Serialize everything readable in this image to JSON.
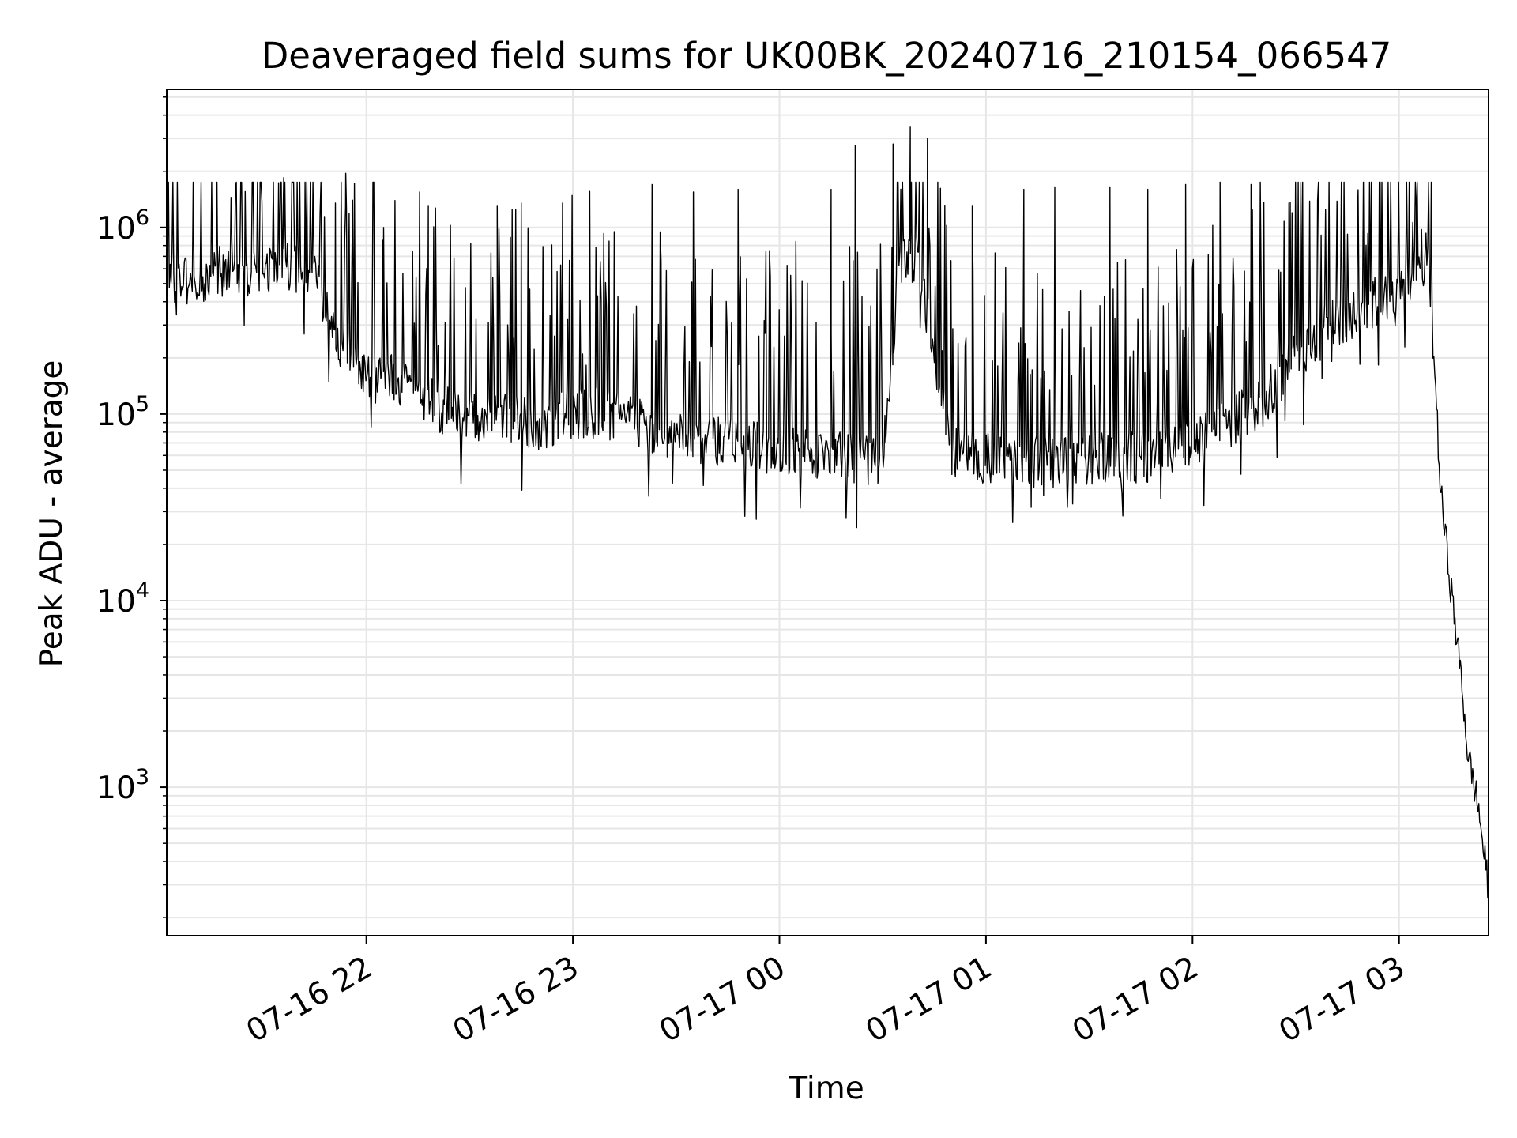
{
  "chart_data": {
    "type": "line",
    "title": "Deaveraged field sums for UK00BK_20240716_210154_066547",
    "xlabel": "Time",
    "ylabel": "Peak ADU - average",
    "yscale": "log",
    "grid": true,
    "line_color": "#000000",
    "xlim": [
      "2024-07-16 21:02",
      "2024-07-17 03:26"
    ],
    "ylim": [
      160,
      5500000
    ],
    "x_ticks": [
      {
        "t": "2024-07-16 22:00",
        "label": "07-16 22"
      },
      {
        "t": "2024-07-16 23:00",
        "label": "07-16 23"
      },
      {
        "t": "2024-07-17 00:00",
        "label": "07-17 00"
      },
      {
        "t": "2024-07-17 01:00",
        "label": "07-17 01"
      },
      {
        "t": "2024-07-17 02:00",
        "label": "07-17 02"
      },
      {
        "t": "2024-07-17 03:00",
        "label": "07-17 03"
      }
    ],
    "y_ticks": [
      {
        "v": 1000,
        "base": "10",
        "exp": "3"
      },
      {
        "v": 10000,
        "base": "10",
        "exp": "4"
      },
      {
        "v": 100000,
        "base": "10",
        "exp": "5"
      },
      {
        "v": 1000000,
        "base": "10",
        "exp": "6"
      }
    ],
    "series": [
      {
        "x": [
          "2024-07-16 21:02",
          "2024-07-16 21:10",
          "2024-07-16 21:20",
          "2024-07-16 21:30",
          "2024-07-16 21:38",
          "2024-07-16 21:45",
          "2024-07-16 21:52",
          "2024-07-16 22:00",
          "2024-07-16 22:10",
          "2024-07-16 22:20",
          "2024-07-16 22:30",
          "2024-07-16 22:40",
          "2024-07-16 22:50",
          "2024-07-16 23:00",
          "2024-07-16 23:10",
          "2024-07-16 23:20",
          "2024-07-16 23:30",
          "2024-07-16 23:40",
          "2024-07-16 23:50",
          "2024-07-17 00:00",
          "2024-07-17 00:10",
          "2024-07-17 00:20",
          "2024-07-17 00:30",
          "2024-07-17 00:35",
          "2024-07-17 00:40",
          "2024-07-17 00:50",
          "2024-07-17 01:00",
          "2024-07-17 01:10",
          "2024-07-17 01:20",
          "2024-07-17 01:30",
          "2024-07-17 01:40",
          "2024-07-17 01:50",
          "2024-07-17 02:00",
          "2024-07-17 02:10",
          "2024-07-17 02:20",
          "2024-07-17 02:30",
          "2024-07-17 02:40",
          "2024-07-17 02:50",
          "2024-07-17 03:00",
          "2024-07-17 03:05",
          "2024-07-17 03:08",
          "2024-07-17 03:10",
          "2024-07-17 03:12",
          "2024-07-17 03:15",
          "2024-07-17 03:18",
          "2024-07-17 03:20",
          "2024-07-17 03:23",
          "2024-07-17 03:26"
        ],
        "y": [
          550000,
          520000,
          600000,
          560000,
          620000,
          520000,
          250000,
          160000,
          150000,
          110000,
          100000,
          95000,
          88000,
          100000,
          100000,
          90000,
          75000,
          70000,
          68000,
          65000,
          60000,
          58000,
          55000,
          700000,
          700000,
          62000,
          58000,
          56000,
          55000,
          57000,
          58000,
          60000,
          70000,
          90000,
          115000,
          200000,
          300000,
          380000,
          450000,
          600000,
          680000,
          250000,
          40000,
          12000,
          4000,
          1500,
          800,
          280
        ]
      }
    ],
    "spikes": [
      {
        "t": "2024-07-16 21:36",
        "v": 1850000
      },
      {
        "t": "2024-07-16 21:54",
        "v": 1950000
      },
      {
        "t": "2024-07-16 21:51",
        "v": 1350000
      },
      {
        "t": "2024-07-16 22:05",
        "v": 1000000
      },
      {
        "t": "2024-07-16 22:18",
        "v": 1300000
      },
      {
        "t": "2024-07-16 22:38",
        "v": 1300000
      },
      {
        "t": "2024-07-16 22:45",
        "v": 1350000
      },
      {
        "t": "2024-07-16 22:57",
        "v": 1350000
      },
      {
        "t": "2024-07-16 23:12",
        "v": 950000
      },
      {
        "t": "2024-07-16 23:23",
        "v": 1700000
      },
      {
        "t": "2024-07-16 23:35",
        "v": 1550000
      },
      {
        "t": "2024-07-16 23:48",
        "v": 1600000
      },
      {
        "t": "2024-07-17 00:15",
        "v": 1600000
      },
      {
        "t": "2024-07-17 00:22",
        "v": 2750000
      },
      {
        "t": "2024-07-17 00:33",
        "v": 2800000
      },
      {
        "t": "2024-07-17 00:38",
        "v": 3450000
      },
      {
        "t": "2024-07-17 00:43",
        "v": 3000000
      },
      {
        "t": "2024-07-17 00:56",
        "v": 1300000
      },
      {
        "t": "2024-07-17 01:11",
        "v": 1600000
      },
      {
        "t": "2024-07-17 01:20",
        "v": 1650000
      },
      {
        "t": "2024-07-17 01:36",
        "v": 1650000
      },
      {
        "t": "2024-07-17 01:47",
        "v": 1600000
      },
      {
        "t": "2024-07-17 01:58",
        "v": 1700000
      },
      {
        "t": "2024-07-17 02:08",
        "v": 1750000
      },
      {
        "t": "2024-07-17 02:17",
        "v": 1700000
      },
      {
        "t": "2024-07-17 02:28",
        "v": 1350000
      },
      {
        "t": "2024-07-17 02:48",
        "v": 1300000
      },
      {
        "t": "2024-07-17 03:05",
        "v": 1300000
      }
    ]
  }
}
